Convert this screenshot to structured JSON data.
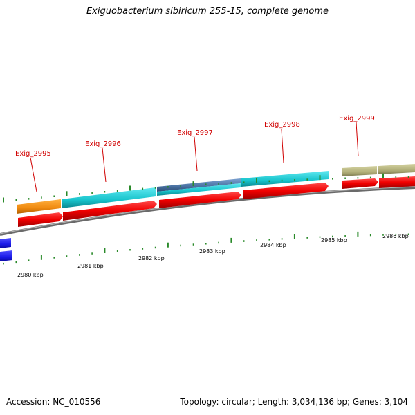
{
  "title": "Exiguobacterium sibiricum 255-15, complete genome",
  "footer": {
    "accession": "Accession: NC_010556",
    "topology": "Topology: circular; Length: 3,034,136 bp; Genes: 3,104"
  },
  "colors": {
    "backbone": "#8a8a8a",
    "ticks": "#2a8a2a",
    "label": "#d00000",
    "cds_forward": "#e00000",
    "orange": "#f0901a",
    "cyan": "#20c8d0",
    "steelblue": "#4a78a8",
    "khaki": "#b0ae7a",
    "blue": "#1a1ae0"
  },
  "genes": [
    {
      "name": "Exig_2995"
    },
    {
      "name": "Exig_2996"
    },
    {
      "name": "Exig_2997"
    },
    {
      "name": "Exig_2998"
    },
    {
      "name": "Exig_2999"
    }
  ],
  "kbp_labels": [
    "2980 kbp",
    "2981 kbp",
    "2982 kbp",
    "2983 kbp",
    "2984 kbp",
    "2985 kbp",
    "2986 kbp"
  ]
}
